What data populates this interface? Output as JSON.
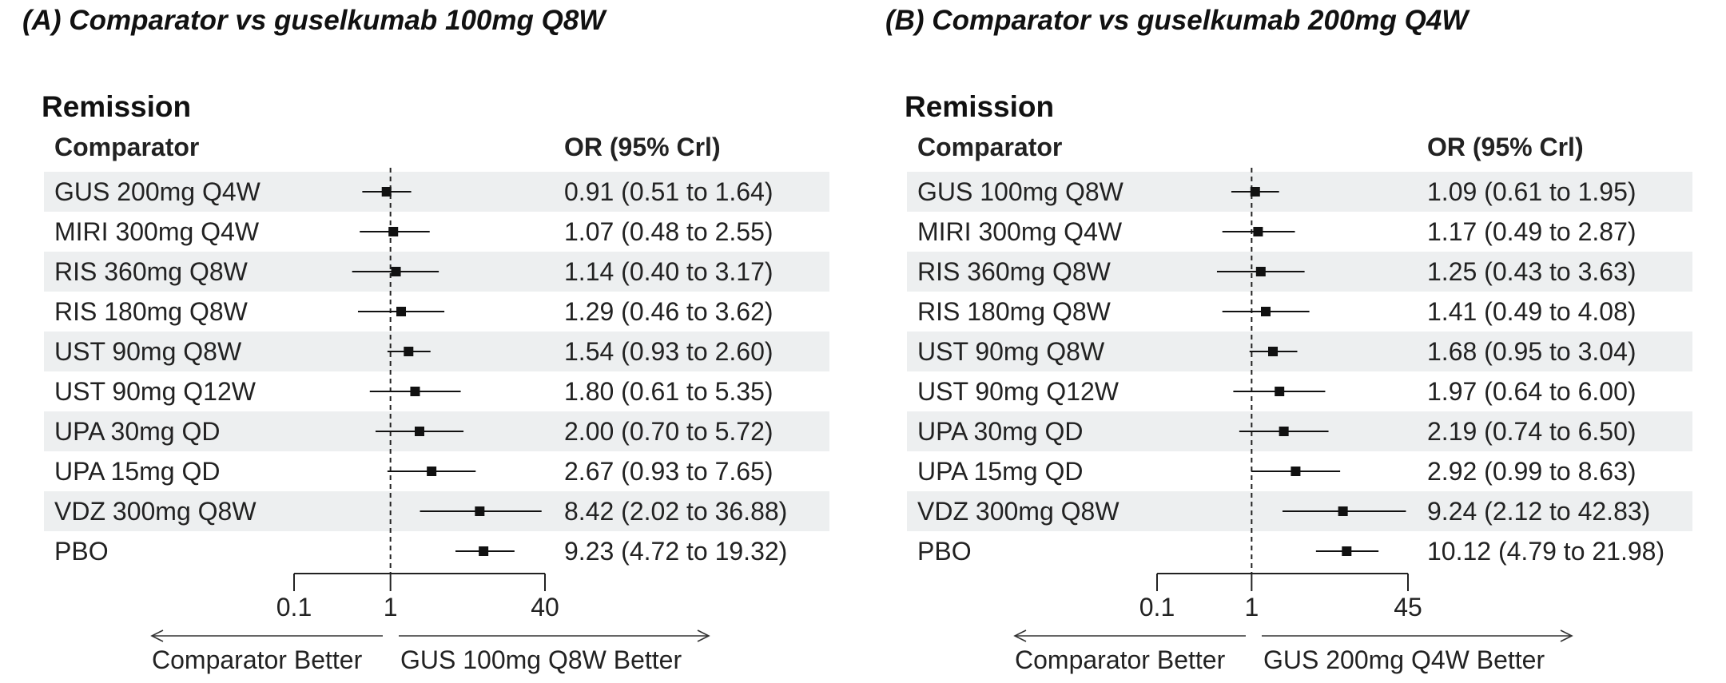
{
  "chart_data": [
    {
      "type": "forest",
      "title": "(A) Comparator vs guselkumab 100mg Q8W",
      "section": "Remission",
      "col_comparator": "Comparator",
      "col_or": "OR (95% Crl)",
      "x_scale": "log",
      "xlim": [
        0.1,
        40
      ],
      "ticks": [
        "0.1",
        "1",
        "40"
      ],
      "tick_values": [
        0.1,
        1,
        40
      ],
      "reference": 1,
      "left_label": "Comparator Better",
      "right_label": "GUS 100mg Q8W Better",
      "rows": [
        {
          "label": "GUS 200mg Q4W",
          "or": 0.91,
          "lo": 0.51,
          "hi": 1.64,
          "text": "0.91 (0.51 to 1.64)"
        },
        {
          "label": "MIRI 300mg Q4W",
          "or": 1.07,
          "lo": 0.48,
          "hi": 2.55,
          "text": "1.07 (0.48 to 2.55)"
        },
        {
          "label": "RIS 360mg Q8W",
          "or": 1.14,
          "lo": 0.4,
          "hi": 3.17,
          "text": "1.14 (0.40 to 3.17)"
        },
        {
          "label": "RIS 180mg Q8W",
          "or": 1.29,
          "lo": 0.46,
          "hi": 3.62,
          "text": "1.29 (0.46 to 3.62)"
        },
        {
          "label": "UST 90mg Q8W",
          "or": 1.54,
          "lo": 0.93,
          "hi": 2.6,
          "text": "1.54 (0.93 to 2.60)"
        },
        {
          "label": "UST 90mg Q12W",
          "or": 1.8,
          "lo": 0.61,
          "hi": 5.35,
          "text": "1.80 (0.61 to 5.35)"
        },
        {
          "label": "UPA 30mg QD",
          "or": 2.0,
          "lo": 0.7,
          "hi": 5.72,
          "text": "2.00 (0.70 to 5.72)"
        },
        {
          "label": "UPA 15mg QD",
          "or": 2.67,
          "lo": 0.93,
          "hi": 7.65,
          "text": "2.67 (0.93 to 7.65)"
        },
        {
          "label": "VDZ 300mg Q8W",
          "or": 8.42,
          "lo": 2.02,
          "hi": 36.88,
          "text": "8.42 (2.02 to 36.88)"
        },
        {
          "label": "PBO",
          "or": 9.23,
          "lo": 4.72,
          "hi": 19.32,
          "text": "9.23 (4.72 to 19.32)"
        }
      ]
    },
    {
      "type": "forest",
      "title": "(B) Comparator vs guselkumab 200mg Q4W",
      "section": "Remission",
      "col_comparator": "Comparator",
      "col_or": "OR (95% Crl)",
      "x_scale": "log",
      "xlim": [
        0.1,
        45
      ],
      "ticks": [
        "0.1",
        "1",
        "45"
      ],
      "tick_values": [
        0.1,
        1,
        45
      ],
      "reference": 1,
      "left_label": "Comparator Better",
      "right_label": "GUS 200mg Q4W Better",
      "rows": [
        {
          "label": "GUS 100mg Q8W",
          "or": 1.09,
          "lo": 0.61,
          "hi": 1.95,
          "text": "1.09 (0.61 to 1.95)"
        },
        {
          "label": "MIRI 300mg Q4W",
          "or": 1.17,
          "lo": 0.49,
          "hi": 2.87,
          "text": "1.17 (0.49 to 2.87)"
        },
        {
          "label": "RIS 360mg Q8W",
          "or": 1.25,
          "lo": 0.43,
          "hi": 3.63,
          "text": "1.25 (0.43 to 3.63)"
        },
        {
          "label": "RIS 180mg Q8W",
          "or": 1.41,
          "lo": 0.49,
          "hi": 4.08,
          "text": "1.41 (0.49 to 4.08)"
        },
        {
          "label": "UST 90mg Q8W",
          "or": 1.68,
          "lo": 0.95,
          "hi": 3.04,
          "text": "1.68 (0.95 to 3.04)"
        },
        {
          "label": "UST 90mg Q12W",
          "or": 1.97,
          "lo": 0.64,
          "hi": 6.0,
          "text": "1.97 (0.64 to 6.00)"
        },
        {
          "label": "UPA 30mg QD",
          "or": 2.19,
          "lo": 0.74,
          "hi": 6.5,
          "text": "2.19 (0.74 to 6.50)"
        },
        {
          "label": "UPA 15mg QD",
          "or": 2.92,
          "lo": 0.99,
          "hi": 8.63,
          "text": "2.92 (0.99 to 8.63)"
        },
        {
          "label": "VDZ 300mg Q8W",
          "or": 9.24,
          "lo": 2.12,
          "hi": 42.83,
          "text": "9.24 (2.12 to 42.83)"
        },
        {
          "label": "PBO",
          "or": 10.12,
          "lo": 4.79,
          "hi": 21.98,
          "text": "10.12 (4.79 to 21.98)"
        }
      ]
    }
  ]
}
